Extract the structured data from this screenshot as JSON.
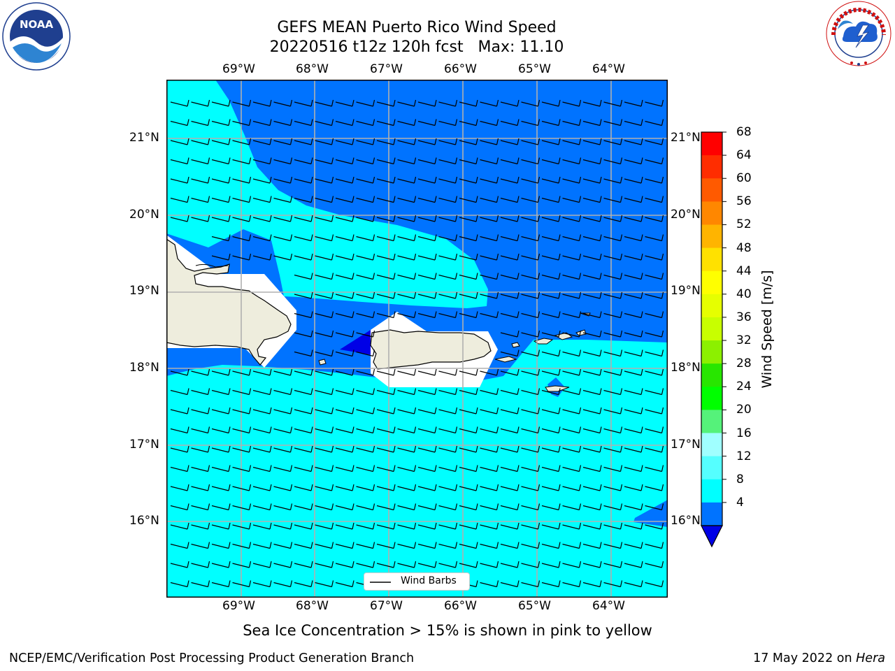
{
  "header": {
    "title_line1": "GEFS MEAN Puerto Rico Wind Speed",
    "title_line2": "20220516 t12z 120h fcst   Max: 11.10"
  },
  "logos": {
    "left": {
      "text": "NOAA",
      "ring_text": "NATIONAL OCEANIC AND ATMOSPHERIC ADMINISTRATION • U.S. DEPARTMENT OF COMMERCE"
    },
    "right": {
      "ring_text": "NATIONAL WEATHER SERVICE"
    }
  },
  "map": {
    "lon_labels": [
      "69°W",
      "68°W",
      "67°W",
      "66°W",
      "65°W",
      "64°W"
    ],
    "lat_labels": [
      "21°N",
      "20°N",
      "19°N",
      "18°N",
      "17°N",
      "16°N"
    ],
    "legend_label": "Wind Barbs",
    "colors": {
      "light_band": "#00ffff",
      "medium_band": "#0073ff",
      "dark_band": "#0000e6",
      "land": "#eeeddd",
      "grid": "#b0b0b0"
    }
  },
  "colorbar": {
    "label": "Wind Speed [m/s]",
    "ticks": [
      "68",
      "64",
      "60",
      "56",
      "52",
      "48",
      "44",
      "40",
      "36",
      "32",
      "28",
      "24",
      "20",
      "16",
      "12",
      "8",
      "4"
    ],
    "colors": [
      "#ff0000",
      "#ff2d00",
      "#ff5a00",
      "#ff8700",
      "#ffb400",
      "#ffe100",
      "#ffff00",
      "#e6ff00",
      "#c8ff00",
      "#8cf000",
      "#28e600",
      "#00ff00",
      "#55f27a",
      "#a0ffff",
      "#55ffff",
      "#00ffff",
      "#0073ff"
    ],
    "extend_color": "#0000e6"
  },
  "footer": {
    "note": "Sea Ice Concentration > 15% is shown in pink to yellow",
    "branch": "NCEP/EMC/Verification Post Processing Product Generation Branch",
    "date": "17 May 2022 on ",
    "machine": "Hera"
  }
}
